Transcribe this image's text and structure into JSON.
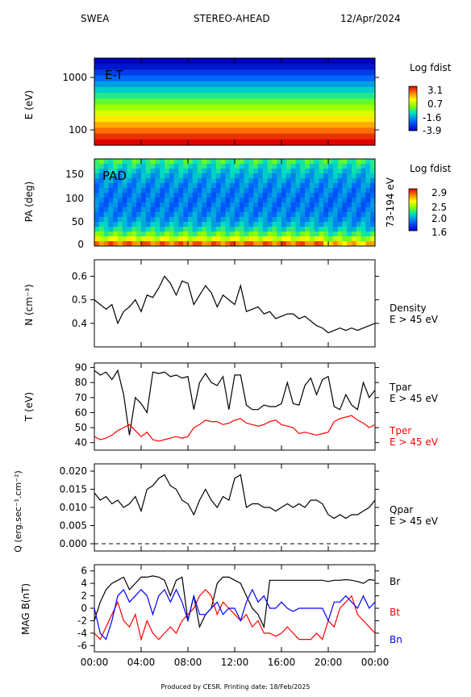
{
  "header": {
    "instrument": "SWEA",
    "spacecraft": "STEREO-AHEAD",
    "date": "12/Apr/2024"
  },
  "footer": "Produced by CESR.   Printing date: 18/Feb/2025",
  "x_axis": {
    "ticks": [
      "00:00",
      "04:00",
      "08:00",
      "12:00",
      "16:00",
      "20:00",
      "00:00"
    ],
    "range_hours": [
      0,
      24
    ]
  },
  "chart_data": [
    {
      "id": "energy_time",
      "type": "heatmap",
      "title": "E-T",
      "ylabel": "E (eV)",
      "yscale": "log",
      "ylim": [
        50,
        2200
      ],
      "yticks": [
        "1000",
        "100"
      ],
      "colorbar": {
        "label": "Log fdist",
        "ticks": [
          "3.1",
          "0.7",
          "-1.6",
          "-3.9"
        ],
        "range": [
          -3.9,
          3.1
        ]
      },
      "band_levels": [
        -3.9,
        -3.6,
        -3.0,
        -2.4,
        -1.8,
        -1.3,
        -0.8,
        -0.3,
        0.2,
        0.7,
        1.2,
        1.7,
        2.2,
        2.7,
        3.1
      ]
    },
    {
      "id": "pitch_angle",
      "type": "heatmap",
      "title": "PAD",
      "ylabel": "PA (deg)",
      "ylim": [
        0,
        180
      ],
      "yticks": [
        "150",
        "100",
        "50",
        "0"
      ],
      "energy_range": "73-194 eV",
      "colorbar": {
        "label": "Log fdist",
        "ticks": [
          "2.9",
          "2.5",
          "2.0",
          "1.6"
        ],
        "range": [
          1.6,
          2.9
        ]
      }
    },
    {
      "id": "density",
      "type": "line",
      "ylabel": "N (cm⁻³)",
      "ylim": [
        0.3,
        0.67
      ],
      "yticks": [
        "0.6",
        "0.5",
        "0.4"
      ],
      "series": [
        {
          "name": "Density",
          "subtitle": "E > 45 eV",
          "color": "#000000",
          "x": [
            0,
            0.5,
            1,
            1.5,
            2,
            2.5,
            3,
            3.5,
            4,
            4.5,
            5,
            5.5,
            6,
            6.5,
            7,
            7.5,
            8,
            8.5,
            9,
            9.5,
            10,
            10.5,
            11,
            11.5,
            12,
            12.5,
            13,
            13.5,
            14,
            14.5,
            15,
            15.5,
            16,
            16.5,
            17,
            17.5,
            18,
            18.5,
            19,
            19.5,
            20,
            20.5,
            21,
            21.5,
            22,
            22.5,
            23,
            23.5,
            24
          ],
          "y": [
            0.5,
            0.48,
            0.46,
            0.48,
            0.4,
            0.45,
            0.47,
            0.5,
            0.45,
            0.52,
            0.51,
            0.55,
            0.6,
            0.57,
            0.52,
            0.58,
            0.57,
            0.48,
            0.52,
            0.56,
            0.53,
            0.47,
            0.52,
            0.5,
            0.48,
            0.56,
            0.45,
            0.46,
            0.47,
            0.44,
            0.45,
            0.42,
            0.43,
            0.44,
            0.44,
            0.42,
            0.43,
            0.41,
            0.39,
            0.38,
            0.36,
            0.37,
            0.38,
            0.37,
            0.38,
            0.37,
            0.38,
            0.39,
            0.4
          ]
        }
      ]
    },
    {
      "id": "temperature",
      "type": "line",
      "ylabel": "T (eV)",
      "ylim": [
        35,
        93
      ],
      "yticks": [
        "90",
        "80",
        "70",
        "60",
        "50",
        "40"
      ],
      "series": [
        {
          "name": "Tpar",
          "subtitle": "E > 45 eV",
          "color": "#000000",
          "x": [
            0,
            0.5,
            1,
            1.5,
            2,
            2.5,
            3,
            3.5,
            4,
            4.5,
            5,
            5.5,
            6,
            6.5,
            7,
            7.5,
            8,
            8.5,
            9,
            9.5,
            10,
            10.5,
            11,
            11.5,
            12,
            12.5,
            13,
            13.5,
            14,
            14.5,
            15,
            15.5,
            16,
            16.5,
            17,
            17.5,
            18,
            18.5,
            19,
            19.5,
            20,
            20.5,
            21,
            21.5,
            22,
            22.5,
            23,
            23.5,
            24
          ],
          "y": [
            88,
            85,
            87,
            82,
            88,
            72,
            45,
            70,
            66,
            60,
            87,
            86,
            87,
            84,
            85,
            83,
            84,
            62,
            80,
            86,
            80,
            78,
            84,
            62,
            85,
            85,
            65,
            62,
            62,
            65,
            64,
            64,
            66,
            80,
            66,
            65,
            78,
            83,
            72,
            82,
            84,
            64,
            62,
            72,
            65,
            62,
            80,
            70,
            75
          ]
        },
        {
          "name": "Tper",
          "subtitle": "E > 45 eV",
          "color": "#ff0000",
          "x": [
            0,
            0.5,
            1,
            1.5,
            2,
            2.5,
            3,
            3.5,
            4,
            4.5,
            5,
            5.5,
            6,
            6.5,
            7,
            7.5,
            8,
            8.5,
            9,
            9.5,
            10,
            10.5,
            11,
            11.5,
            12,
            12.5,
            13,
            13.5,
            14,
            14.5,
            15,
            15.5,
            16,
            16.5,
            17,
            17.5,
            18,
            18.5,
            19,
            19.5,
            20,
            20.5,
            21,
            21.5,
            22,
            22.5,
            23,
            23.5,
            24
          ],
          "y": [
            44,
            42,
            43,
            45,
            48,
            50,
            52,
            48,
            44,
            47,
            42,
            41,
            42,
            43,
            44,
            43,
            44,
            50,
            52,
            55,
            54,
            54,
            52,
            53,
            55,
            56,
            53,
            52,
            51,
            52,
            54,
            55,
            52,
            51,
            50,
            46,
            47,
            46,
            45,
            46,
            47,
            54,
            56,
            57,
            58,
            55,
            53,
            50,
            52
          ]
        }
      ]
    },
    {
      "id": "heat_flux",
      "type": "line",
      "ylabel": "Q (erg.sec⁻¹.cm⁻²)",
      "ylim": [
        -0.002,
        0.022
      ],
      "yticks": [
        "0.020",
        "0.015",
        "0.010",
        "0.005",
        "0.000"
      ],
      "zero_line": true,
      "series": [
        {
          "name": "Qpar",
          "subtitle": "E > 45 eV",
          "color": "#000000",
          "x": [
            0,
            0.5,
            1,
            1.5,
            2,
            2.5,
            3,
            3.5,
            4,
            4.5,
            5,
            5.5,
            6,
            6.5,
            7,
            7.5,
            8,
            8.5,
            9,
            9.5,
            10,
            10.5,
            11,
            11.5,
            12,
            12.5,
            13,
            13.5,
            14,
            14.5,
            15,
            15.5,
            16,
            16.5,
            17,
            17.5,
            18,
            18.5,
            19,
            19.5,
            20,
            20.5,
            21,
            21.5,
            22,
            22.5,
            23,
            23.5,
            24
          ],
          "y": [
            0.014,
            0.012,
            0.013,
            0.011,
            0.012,
            0.01,
            0.011,
            0.013,
            0.009,
            0.015,
            0.016,
            0.018,
            0.019,
            0.016,
            0.015,
            0.012,
            0.011,
            0.008,
            0.012,
            0.015,
            0.012,
            0.01,
            0.013,
            0.012,
            0.018,
            0.019,
            0.01,
            0.011,
            0.011,
            0.01,
            0.01,
            0.009,
            0.01,
            0.011,
            0.01,
            0.011,
            0.01,
            0.012,
            0.012,
            0.011,
            0.008,
            0.007,
            0.008,
            0.007,
            0.008,
            0.008,
            0.009,
            0.01,
            0.012
          ]
        }
      ]
    },
    {
      "id": "magnetic_field",
      "type": "line",
      "ylabel": "MAG B(nT)",
      "ylim": [
        -7,
        7
      ],
      "yticks": [
        "6",
        "4",
        "2",
        "0",
        "-2",
        "-4",
        "-6"
      ],
      "series": [
        {
          "name": "Br",
          "color": "#000000",
          "x": [
            0,
            0.5,
            1,
            1.5,
            2,
            2.5,
            3,
            3.5,
            4,
            4.5,
            5,
            5.5,
            6,
            6.5,
            7,
            7.5,
            8,
            8.5,
            9,
            9.5,
            10,
            10.5,
            11,
            11.5,
            12,
            12.5,
            13,
            13.5,
            14,
            14.5,
            15,
            15.5,
            16,
            16.5,
            17,
            17.5,
            18,
            18.5,
            19,
            19.5,
            20,
            20.5,
            21,
            21.5,
            22,
            22.5,
            23,
            23.5,
            24
          ],
          "y": [
            -2,
            1,
            3,
            4,
            4.5,
            5,
            3,
            4,
            5,
            5,
            5.2,
            5,
            4.5,
            2,
            4.5,
            5,
            -2,
            2,
            -3,
            -1,
            0,
            4,
            5,
            5,
            4.5,
            4,
            2,
            0,
            -1,
            -3,
            4.5,
            4.5,
            4.5,
            4.5,
            4.5,
            4.5,
            4.5,
            4.5,
            4.5,
            4.5,
            4.3,
            4.5,
            4.5,
            4.6,
            4.5,
            4.3,
            4,
            4.6,
            4.5
          ]
        },
        {
          "name": "Bt",
          "color": "#ff0000",
          "x": [
            0,
            0.5,
            1,
            1.5,
            2,
            2.5,
            3,
            3.5,
            4,
            4.5,
            5,
            5.5,
            6,
            6.5,
            7,
            7.5,
            8,
            8.5,
            9,
            9.5,
            10,
            10.5,
            11,
            11.5,
            12,
            12.5,
            13,
            13.5,
            14,
            14.5,
            15,
            15.5,
            16,
            16.5,
            17,
            17.5,
            18,
            18.5,
            19,
            19.5,
            20,
            20.5,
            21,
            21.5,
            22,
            22.5,
            23,
            23.5,
            24
          ],
          "y": [
            -4,
            -5,
            -3,
            -1,
            1,
            -2,
            -3,
            -1,
            -5,
            -2,
            -4,
            -5,
            -4,
            -3,
            -4,
            -2,
            -1,
            0,
            2,
            3,
            2,
            -1,
            1,
            0,
            -1,
            -2,
            -1,
            -3,
            -2,
            -4,
            -4,
            -4.5,
            -4,
            -3,
            -4,
            -5,
            -5,
            -5,
            -4,
            -5,
            -2,
            -3,
            0,
            1,
            2,
            -1,
            -2,
            -3,
            -4
          ]
        },
        {
          "name": "Bn",
          "color": "#0000ff",
          "x": [
            0,
            0.5,
            1,
            1.5,
            2,
            2.5,
            3,
            3.5,
            4,
            4.5,
            5,
            5.5,
            6,
            6.5,
            7,
            7.5,
            8,
            8.5,
            9,
            9.5,
            10,
            10.5,
            11,
            11.5,
            12,
            12.5,
            13,
            13.5,
            14,
            14.5,
            15,
            15.5,
            16,
            16.5,
            17,
            17.5,
            18,
            18.5,
            19,
            19.5,
            20,
            20.5,
            21,
            21.5,
            22,
            22.5,
            23,
            23.5,
            24
          ],
          "y": [
            0,
            -4,
            -5,
            -2,
            2,
            3,
            1,
            2,
            3,
            2,
            -1,
            2,
            3,
            1,
            3,
            1,
            -2,
            2,
            -1,
            -1,
            0,
            1,
            -1,
            0,
            0,
            -2,
            1,
            3,
            1,
            2,
            0,
            0,
            1,
            0,
            -0.5,
            0,
            0,
            0,
            0,
            0,
            -2,
            1,
            1,
            2,
            1,
            0,
            2,
            0,
            1
          ]
        }
      ]
    }
  ]
}
